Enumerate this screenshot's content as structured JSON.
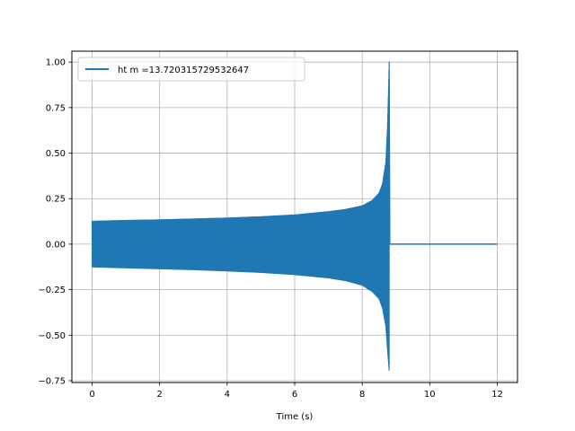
{
  "chart_data": {
    "type": "line",
    "title": "",
    "xlabel": "Time (s)",
    "ylabel": "",
    "xlim": [
      -0.6,
      12.6
    ],
    "ylim": [
      -0.76,
      1.06
    ],
    "grid": true,
    "legend_position": "top-left",
    "x_ticks": [
      0,
      2,
      4,
      6,
      8,
      10,
      12
    ],
    "x_tick_labels": [
      "0",
      "2",
      "4",
      "6",
      "8",
      "10",
      "12"
    ],
    "y_ticks": [
      -0.75,
      -0.5,
      -0.25,
      0.0,
      0.25,
      0.5,
      0.75,
      1.0
    ],
    "y_tick_labels": [
      "−0.75",
      "−0.50",
      "−0.25",
      "0.00",
      "0.25",
      "0.50",
      "0.75",
      "1.00"
    ],
    "series": [
      {
        "name": "ht m =13.720315729532647",
        "color": "#1f77b4",
        "envelope_upper": [
          [
            0.0,
            0.125
          ],
          [
            1,
            0.13
          ],
          [
            2,
            0.133
          ],
          [
            3,
            0.138
          ],
          [
            4,
            0.143
          ],
          [
            5,
            0.15
          ],
          [
            6,
            0.16
          ],
          [
            7,
            0.178
          ],
          [
            7.5,
            0.19
          ],
          [
            8,
            0.21
          ],
          [
            8.3,
            0.24
          ],
          [
            8.5,
            0.28
          ],
          [
            8.6,
            0.33
          ],
          [
            8.7,
            0.45
          ],
          [
            8.75,
            0.65
          ],
          [
            8.8,
            1.0
          ]
        ],
        "envelope_lower": [
          [
            0.0,
            -0.125
          ],
          [
            1,
            -0.13
          ],
          [
            2,
            -0.135
          ],
          [
            3,
            -0.14
          ],
          [
            4,
            -0.147
          ],
          [
            5,
            -0.155
          ],
          [
            6,
            -0.167
          ],
          [
            7,
            -0.185
          ],
          [
            7.5,
            -0.2
          ],
          [
            8,
            -0.225
          ],
          [
            8.3,
            -0.26
          ],
          [
            8.5,
            -0.3
          ],
          [
            8.6,
            -0.35
          ],
          [
            8.7,
            -0.45
          ],
          [
            8.75,
            -0.58
          ],
          [
            8.8,
            -0.7
          ]
        ],
        "post_merger": [
          [
            8.82,
            0.0
          ],
          [
            12.0,
            0.0
          ]
        ]
      }
    ]
  }
}
